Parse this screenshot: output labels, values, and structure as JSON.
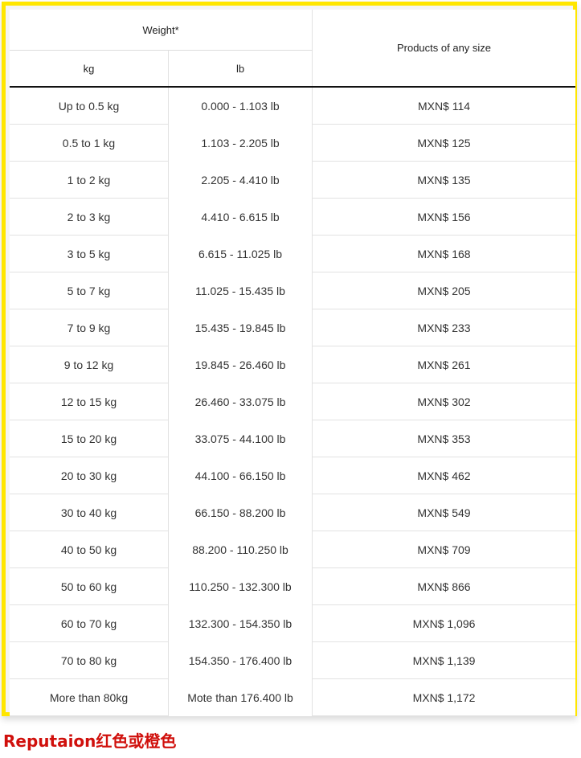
{
  "header": {
    "weight": "Weight*",
    "kg": "kg",
    "lb": "lb",
    "price": "Products of any size"
  },
  "rows": [
    {
      "kg": "Up to 0.5 kg",
      "lb": "0.000 - 1.103 lb",
      "price": "MXN$ 114"
    },
    {
      "kg": "0.5 to 1 kg",
      "lb": "1.103 - 2.205 lb",
      "price": "MXN$ 125"
    },
    {
      "kg": "1 to 2 kg",
      "lb": "2.205 - 4.410 lb",
      "price": "MXN$ 135"
    },
    {
      "kg": "2 to 3 kg",
      "lb": "4.410 - 6.615 lb",
      "price": "MXN$ 156"
    },
    {
      "kg": "3 to 5 kg",
      "lb": "6.615 - 11.025 lb",
      "price": "MXN$ 168"
    },
    {
      "kg": "5 to 7 kg",
      "lb": "11.025 - 15.435 lb",
      "price": "MXN$ 205"
    },
    {
      "kg": "7 to 9 kg",
      "lb": "15.435 - 19.845 lb",
      "price": "MXN$ 233"
    },
    {
      "kg": "9 to 12 kg",
      "lb": "19.845 - 26.460 lb",
      "price": "MXN$ 261"
    },
    {
      "kg": "12 to 15 kg",
      "lb": "26.460 - 33.075 lb",
      "price": "MXN$ 302"
    },
    {
      "kg": "15 to 20 kg",
      "lb": "33.075 - 44.100 lb",
      "price": "MXN$ 353"
    },
    {
      "kg": "20 to 30 kg",
      "lb": "44.100 - 66.150 lb",
      "price": "MXN$ 462"
    },
    {
      "kg": "30 to 40 kg",
      "lb": "66.150 - 88.200 lb",
      "price": "MXN$ 549"
    },
    {
      "kg": "40 to 50 kg",
      "lb": "88.200 - 110.250 lb",
      "price": "MXN$ 709"
    },
    {
      "kg": "50 to 60 kg",
      "lb": "110.250 - 132.300 lb",
      "price": "MXN$ 866"
    },
    {
      "kg": "60 to 70 kg",
      "lb": "132.300 - 154.350 lb",
      "price": "MXN$ 1,096"
    },
    {
      "kg": "70 to 80 kg",
      "lb": "154.350 - 176.400 lb",
      "price": "MXN$ 1,139"
    },
    {
      "kg": "More than 80kg",
      "lb": "Mote than 176.400 lb",
      "price": "MXN$ 1,172"
    }
  ],
  "caption": "Reputaion红色或橙色",
  "colors": {
    "highlight_border": "#ffe600",
    "caption": "#d0100c"
  }
}
